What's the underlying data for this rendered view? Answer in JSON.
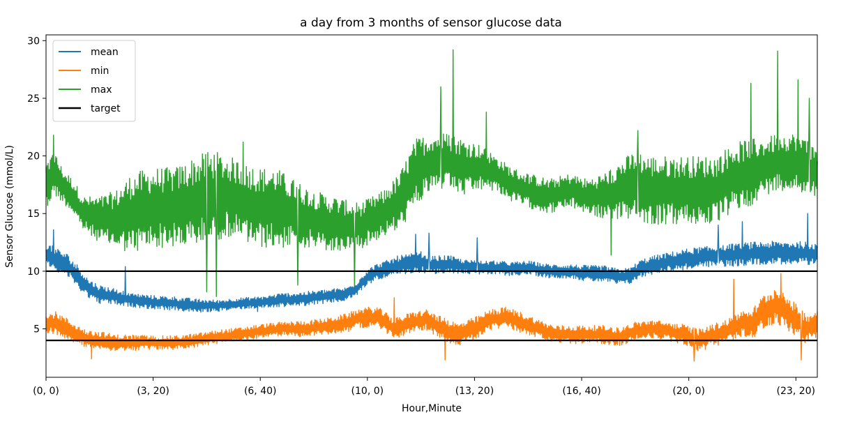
{
  "chart_data": {
    "type": "line",
    "title": "a day from 3 months of sensor glucose data",
    "xlabel": "Hour,Minute",
    "ylabel": "Sensor Glucose (mmol/L)",
    "x_range_minutes": [
      0,
      1440
    ],
    "ylim": [
      0.8,
      30.5
    ],
    "x_ticks": [
      {
        "minute": 0,
        "label": "(0, 0)"
      },
      {
        "minute": 200,
        "label": "(3, 20)"
      },
      {
        "minute": 400,
        "label": "(6, 40)"
      },
      {
        "minute": 600,
        "label": "(10, 0)"
      },
      {
        "minute": 800,
        "label": "(13, 20)"
      },
      {
        "minute": 1000,
        "label": "(16, 40)"
      },
      {
        "minute": 1200,
        "label": "(20, 0)"
      },
      {
        "minute": 1400,
        "label": "(23, 20)"
      }
    ],
    "y_ticks": [
      5,
      10,
      15,
      20,
      25,
      30
    ],
    "grid": false,
    "legend": {
      "placement": "top-left",
      "entries": [
        {
          "name": "mean",
          "color": "#1f77b4"
        },
        {
          "name": "min",
          "color": "#ff7f0e"
        },
        {
          "name": "max",
          "color": "#2ca02c"
        },
        {
          "name": "target",
          "color": "#000000"
        }
      ]
    },
    "series": [
      {
        "name": "max",
        "color": "#2ca02c",
        "minute": [
          0,
          15,
          30,
          50,
          70,
          100,
          130,
          160,
          200,
          240,
          280,
          310,
          340,
          370,
          400,
          430,
          460,
          500,
          540,
          570,
          590,
          610,
          630,
          660,
          690,
          720,
          750,
          780,
          810,
          840,
          870,
          900,
          940,
          980,
          1010,
          1040,
          1070,
          1100,
          1130,
          1160,
          1190,
          1220,
          1250,
          1280,
          1310,
          1340,
          1370,
          1400,
          1420,
          1440
        ],
        "values": [
          17.5,
          18.5,
          17.5,
          16.5,
          15.0,
          14.5,
          14.5,
          15.0,
          15.5,
          15.5,
          16.0,
          16.5,
          16.5,
          16.0,
          15.5,
          15.5,
          15.0,
          14.5,
          14.0,
          14.0,
          14.0,
          14.5,
          15.0,
          16.0,
          18.5,
          19.5,
          19.5,
          19.0,
          19.0,
          18.5,
          17.5,
          17.0,
          16.5,
          17.0,
          16.5,
          16.5,
          17.0,
          17.5,
          17.0,
          17.0,
          17.0,
          17.0,
          17.0,
          18.0,
          18.5,
          19.0,
          19.5,
          19.5,
          19.0,
          18.5
        ],
        "amplitude": [
          2.0,
          2.0,
          1.5,
          1.5,
          1.5,
          2.0,
          2.5,
          3.5,
          3.5,
          3.5,
          4.0,
          4.0,
          3.5,
          3.5,
          3.5,
          3.5,
          3.0,
          2.5,
          2.5,
          2.0,
          2.0,
          2.0,
          2.0,
          2.5,
          3.0,
          2.5,
          2.5,
          2.5,
          2.0,
          1.5,
          1.5,
          1.5,
          1.5,
          1.5,
          1.5,
          2.0,
          2.5,
          3.0,
          3.0,
          3.0,
          3.0,
          3.0,
          3.0,
          3.0,
          3.0,
          2.5,
          2.5,
          2.5,
          2.5,
          2.0
        ],
        "spikes": [
          {
            "minute": 14,
            "value": 21.8
          },
          {
            "minute": 368,
            "value": 21.2
          },
          {
            "minute": 737,
            "value": 26.0
          },
          {
            "minute": 760,
            "value": 29.2
          },
          {
            "minute": 822,
            "value": 23.8
          },
          {
            "minute": 1105,
            "value": 22.2
          },
          {
            "minute": 1316,
            "value": 26.3
          },
          {
            "minute": 1366,
            "value": 29.1
          },
          {
            "minute": 1404,
            "value": 26.6
          },
          {
            "minute": 1425,
            "value": 25.0
          }
        ],
        "dips": [
          {
            "minute": 300,
            "value": 8.2
          },
          {
            "minute": 318,
            "value": 7.8
          },
          {
            "minute": 470,
            "value": 8.8
          },
          {
            "minute": 576,
            "value": 8.3
          },
          {
            "minute": 1055,
            "value": 11.4
          }
        ]
      },
      {
        "name": "mean",
        "color": "#1f77b4",
        "minute": [
          0,
          20,
          40,
          60,
          80,
          100,
          130,
          160,
          200,
          240,
          280,
          320,
          360,
          400,
          440,
          480,
          520,
          560,
          580,
          600,
          620,
          640,
          660,
          680,
          700,
          720,
          750,
          780,
          810,
          840,
          870,
          900,
          940,
          980,
          1010,
          1040,
          1070,
          1090,
          1110,
          1130,
          1160,
          1190,
          1220,
          1250,
          1280,
          1310,
          1340,
          1370,
          1400,
          1440
        ],
        "values": [
          11.5,
          11.0,
          10.5,
          9.5,
          8.5,
          8.0,
          7.8,
          7.5,
          7.3,
          7.2,
          7.0,
          7.0,
          7.2,
          7.3,
          7.5,
          7.6,
          7.8,
          8.0,
          8.5,
          9.5,
          10.0,
          10.2,
          10.5,
          10.6,
          10.8,
          10.5,
          10.6,
          10.4,
          10.3,
          10.3,
          10.2,
          10.3,
          10.0,
          10.0,
          9.8,
          9.8,
          9.5,
          9.6,
          10.2,
          10.5,
          10.8,
          11.0,
          11.2,
          11.3,
          11.4,
          11.5,
          11.6,
          11.6,
          11.6,
          11.5
        ],
        "amplitude": [
          1.0,
          1.0,
          1.0,
          1.0,
          0.8,
          0.8,
          0.7,
          0.6,
          0.6,
          0.6,
          0.6,
          0.5,
          0.5,
          0.5,
          0.6,
          0.6,
          0.6,
          0.6,
          0.6,
          0.7,
          0.7,
          0.8,
          0.9,
          0.9,
          0.9,
          0.8,
          0.8,
          0.6,
          0.6,
          0.6,
          0.6,
          0.6,
          0.6,
          0.6,
          0.7,
          0.7,
          0.7,
          0.7,
          0.8,
          0.8,
          0.8,
          0.9,
          0.9,
          0.9,
          1.0,
          1.0,
          1.0,
          1.0,
          1.0,
          1.0
        ],
        "spikes": [
          {
            "minute": 14,
            "value": 13.6
          },
          {
            "minute": 148,
            "value": 10.4
          },
          {
            "minute": 690,
            "value": 13.2
          },
          {
            "minute": 715,
            "value": 13.3
          },
          {
            "minute": 805,
            "value": 12.9
          },
          {
            "minute": 1255,
            "value": 14.0
          },
          {
            "minute": 1300,
            "value": 14.3
          },
          {
            "minute": 1422,
            "value": 15.0
          }
        ],
        "dips": [
          {
            "minute": 395,
            "value": 6.5
          }
        ]
      },
      {
        "name": "min",
        "color": "#ff7f0e",
        "minute": [
          0,
          20,
          40,
          60,
          80,
          100,
          130,
          160,
          200,
          240,
          280,
          320,
          360,
          400,
          440,
          480,
          520,
          560,
          590,
          620,
          650,
          680,
          710,
          740,
          770,
          800,
          830,
          860,
          890,
          920,
          950,
          980,
          1010,
          1040,
          1070,
          1100,
          1130,
          1160,
          1190,
          1220,
          1250,
          1280,
          1300,
          1320,
          1340,
          1360,
          1380,
          1400,
          1420,
          1440
        ],
        "values": [
          5.5,
          5.5,
          5.0,
          4.5,
          4.0,
          4.0,
          3.8,
          3.8,
          3.8,
          3.8,
          4.0,
          4.3,
          4.5,
          4.8,
          5.0,
          5.0,
          5.2,
          5.5,
          6.0,
          6.0,
          5.0,
          5.5,
          5.8,
          5.0,
          4.5,
          5.0,
          5.8,
          6.0,
          5.5,
          5.0,
          4.5,
          4.5,
          4.5,
          4.5,
          4.3,
          4.8,
          5.0,
          4.8,
          4.5,
          4.0,
          4.5,
          5.0,
          5.5,
          5.5,
          6.5,
          7.0,
          6.5,
          5.8,
          5.0,
          5.5
        ],
        "amplitude": [
          1.0,
          1.0,
          0.9,
          0.8,
          0.8,
          0.8,
          0.7,
          0.7,
          0.6,
          0.6,
          0.6,
          0.6,
          0.6,
          0.6,
          0.6,
          0.7,
          0.7,
          0.8,
          0.9,
          0.9,
          0.9,
          0.9,
          0.9,
          1.0,
          1.0,
          1.0,
          0.9,
          0.9,
          0.9,
          0.8,
          0.8,
          0.8,
          0.8,
          0.8,
          0.8,
          0.8,
          0.8,
          0.8,
          0.9,
          1.0,
          1.0,
          1.0,
          1.2,
          1.3,
          1.5,
          1.6,
          1.5,
          1.4,
          1.3,
          1.2
        ],
        "spikes": [
          {
            "minute": 650,
            "value": 7.7
          },
          {
            "minute": 1284,
            "value": 9.3
          },
          {
            "minute": 1372,
            "value": 9.8
          }
        ],
        "dips": [
          {
            "minute": 85,
            "value": 2.4
          },
          {
            "minute": 745,
            "value": 2.3
          },
          {
            "minute": 1210,
            "value": 2.2
          },
          {
            "minute": 1410,
            "value": 2.3
          }
        ]
      },
      {
        "name": "target",
        "color": "#000000",
        "kind": "hline",
        "values": [
          10,
          4
        ]
      }
    ]
  }
}
